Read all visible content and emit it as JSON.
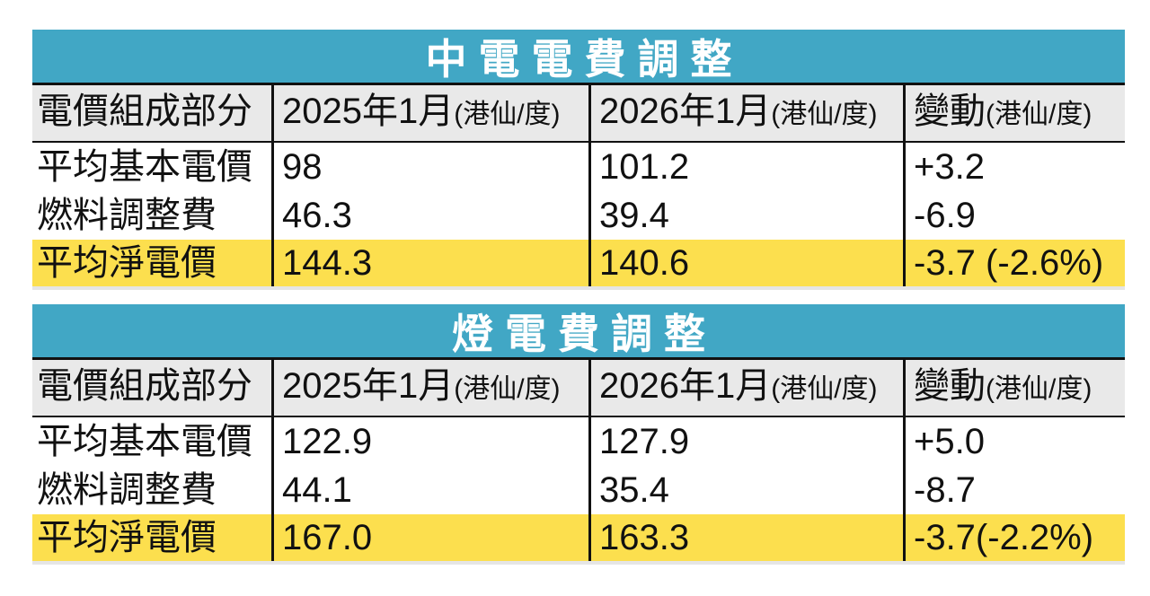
{
  "colors": {
    "band_teal": "#41A7C5",
    "highlight_yellow": "#FCDF4E",
    "header_gray": "#E9E9E9",
    "text_black": "#111111"
  },
  "tables": [
    {
      "title": "中電電費調整",
      "columns": [
        {
          "label": "電價組成部分",
          "unit": ""
        },
        {
          "label": "2025年1月",
          "unit": "(港仙/度)"
        },
        {
          "label": "2026年1月",
          "unit": "(港仙/度)"
        },
        {
          "label": "變動",
          "unit": "(港仙/度)"
        }
      ],
      "rows": [
        {
          "cells": [
            "平均基本電價",
            "98",
            "101.2",
            "+3.2"
          ]
        },
        {
          "cells": [
            "燃料調整費",
            "46.3",
            "39.4",
            "-6.9"
          ]
        },
        {
          "cells": [
            "平均淨電價",
            "144.3",
            "140.6",
            "-3.7 (-2.6%)"
          ]
        }
      ]
    },
    {
      "title": "燈電費調整",
      "columns": [
        {
          "label": "電價組成部分",
          "unit": ""
        },
        {
          "label": "2025年1月",
          "unit": "(港仙/度)"
        },
        {
          "label": "2026年1月",
          "unit": "(港仙/度)"
        },
        {
          "label": "變動",
          "unit": "(港仙/度)"
        }
      ],
      "rows": [
        {
          "cells": [
            "平均基本電價",
            "122.9",
            "127.9",
            "+5.0"
          ]
        },
        {
          "cells": [
            "燃料調整費",
            "44.1",
            "35.4",
            "-8.7"
          ]
        },
        {
          "cells": [
            "平均淨電價",
            "167.0",
            "163.3",
            "-3.7(-2.2%)"
          ]
        }
      ]
    }
  ],
  "chart_data": [
    {
      "type": "table",
      "title": "中電電費調整",
      "columns": [
        "電價組成部分",
        "2025年1月(港仙/度)",
        "2026年1月(港仙/度)",
        "變動(港仙/度)"
      ],
      "rows": [
        [
          "平均基本電價",
          "98",
          "101.2",
          "+3.2"
        ],
        [
          "燃料調整費",
          "46.3",
          "39.4",
          "-6.9"
        ],
        [
          "平均淨電價",
          "144.3",
          "140.6",
          "-3.7 (-2.6%)"
        ]
      ],
      "highlighted_row": "平均淨電價"
    },
    {
      "type": "table",
      "title": "燈電費調整",
      "columns": [
        "電價組成部分",
        "2025年1月(港仙/度)",
        "2026年1月(港仙/度)",
        "變動(港仙/度)"
      ],
      "rows": [
        [
          "平均基本電價",
          "122.9",
          "127.9",
          "+5.0"
        ],
        [
          "燃料調整費",
          "44.1",
          "35.4",
          "-8.7"
        ],
        [
          "平均淨電價",
          "167.0",
          "163.3",
          "-3.7(-2.2%)"
        ]
      ],
      "highlighted_row": "平均淨電價"
    }
  ]
}
